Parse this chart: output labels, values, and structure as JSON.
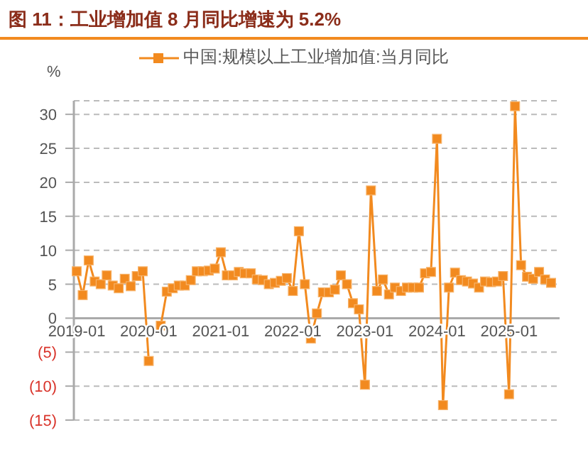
{
  "chart_data": {
    "type": "line",
    "title": "图 11：工业增加值 8 月同比增速为 5.2%",
    "ylabel": "%",
    "categories": [
      "2019-01",
      null,
      null,
      null,
      null,
      null,
      null,
      null,
      null,
      null,
      null,
      null,
      "2020-01",
      null,
      null,
      null,
      null,
      null,
      null,
      null,
      null,
      null,
      null,
      null,
      "2021-01",
      null,
      null,
      null,
      null,
      null,
      null,
      null,
      null,
      null,
      null,
      null,
      "2022-01",
      null,
      null,
      null,
      null,
      null,
      null,
      null,
      null,
      null,
      null,
      null,
      "2023-01",
      null,
      null,
      null,
      null,
      null,
      null,
      null,
      null,
      null,
      null,
      null,
      "2024-01",
      null,
      null,
      null,
      null,
      null,
      null,
      null,
      null,
      null,
      null,
      null,
      "2025-01",
      null,
      null,
      null,
      null,
      null,
      null,
      null
    ],
    "series": [
      {
        "name": "中国:规模以上工业增加值:当月同比",
        "color": "#f28a1f",
        "values": [
          6.9,
          3.4,
          8.5,
          5.4,
          5.0,
          6.3,
          4.8,
          4.4,
          5.8,
          4.7,
          6.2,
          6.9,
          -6.3,
          null,
          -1.1,
          3.9,
          4.4,
          4.8,
          4.8,
          5.6,
          6.9,
          6.9,
          7.0,
          7.3,
          9.7,
          6.3,
          6.3,
          6.8,
          6.6,
          6.6,
          5.7,
          5.6,
          5.0,
          5.2,
          5.5,
          5.9,
          4.0,
          12.8,
          5.0,
          -3.0,
          0.7,
          3.8,
          3.8,
          4.2,
          6.3,
          5.0,
          2.2,
          1.3,
          -9.8,
          18.8,
          4.0,
          5.7,
          3.5,
          4.5,
          4.0,
          4.5,
          4.5,
          4.5,
          6.6,
          6.8,
          26.4,
          -12.8,
          4.5,
          6.7,
          5.6,
          5.4,
          5.1,
          4.5,
          5.4,
          5.3,
          5.4,
          6.2,
          -11.2,
          31.2,
          7.8,
          6.1,
          5.8,
          6.8,
          5.7,
          5.2
        ]
      }
    ],
    "ylim": [
      -15,
      32
    ],
    "yticks": [
      {
        "value": -15,
        "label": "(15)"
      },
      {
        "value": -10,
        "label": "(10)"
      },
      {
        "value": -5,
        "label": "(5)"
      },
      0,
      5,
      10,
      15,
      20,
      25,
      30
    ],
    "grid": "y",
    "legend": "top",
    "marker": "square",
    "line_style": "solid"
  }
}
